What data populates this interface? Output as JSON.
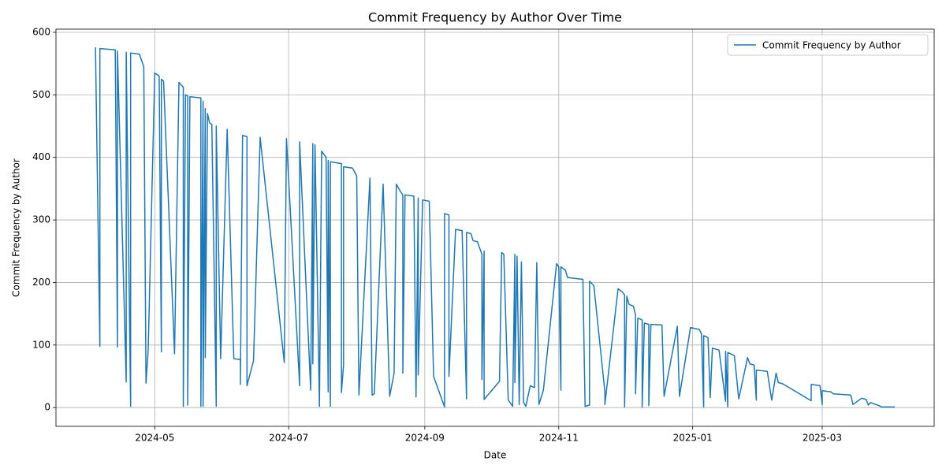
{
  "chart_data": {
    "type": "line",
    "title": "Commit Frequency by Author Over Time",
    "x_label": "Date",
    "y_label": "Commit Frequency by Author",
    "x": [
      "2024-04-04",
      "2024-04-06",
      "2024-04-06",
      "2024-04-13",
      "2024-04-14",
      "2024-04-14",
      "2024-04-18",
      "2024-04-18",
      "2024-04-20",
      "2024-04-20",
      "2024-04-24",
      "2024-04-26",
      "2024-04-27",
      "2024-04-28",
      "2024-05-01",
      "2024-05-03",
      "2024-05-04",
      "2024-05-04",
      "2024-05-05",
      "2024-05-10",
      "2024-05-12",
      "2024-05-14",
      "2024-05-14",
      "2024-05-15",
      "2024-05-16",
      "2024-05-16",
      "2024-05-17",
      "2024-05-22",
      "2024-05-22",
      "2024-05-23",
      "2024-05-23",
      "2024-05-24",
      "2024-05-24",
      "2024-05-25",
      "2024-05-26",
      "2024-05-27",
      "2024-05-29",
      "2024-05-29",
      "2024-05-31",
      "2024-06-03",
      "2024-06-06",
      "2024-06-09",
      "2024-06-09",
      "2024-06-10",
      "2024-06-12",
      "2024-06-12",
      "2024-06-15",
      "2024-06-18",
      "2024-06-29",
      "2024-06-30",
      "2024-07-06",
      "2024-07-06",
      "2024-07-11",
      "2024-07-12",
      "2024-07-12",
      "2024-07-13",
      "2024-07-15",
      "2024-07-16",
      "2024-07-18",
      "2024-07-19",
      "2024-07-19",
      "2024-07-20",
      "2024-07-20",
      "2024-07-25",
      "2024-07-25",
      "2024-07-26",
      "2024-07-26",
      "2024-07-30",
      "2024-07-31",
      "2024-08-01",
      "2024-08-02",
      "2024-08-07",
      "2024-08-08",
      "2024-08-09",
      "2024-08-13",
      "2024-08-16",
      "2024-08-18",
      "2024-08-19",
      "2024-08-21",
      "2024-08-22",
      "2024-08-22",
      "2024-08-23",
      "2024-08-27",
      "2024-08-28",
      "2024-08-29",
      "2024-08-29",
      "2024-08-31",
      "2024-09-03",
      "2024-09-05",
      "2024-09-10",
      "2024-09-10",
      "2024-09-12",
      "2024-09-12",
      "2024-09-15",
      "2024-09-18",
      "2024-09-20",
      "2024-09-20",
      "2024-09-22",
      "2024-09-23",
      "2024-09-25",
      "2024-09-27",
      "2024-09-27",
      "2024-09-28",
      "2024-09-28",
      "2024-10-05",
      "2024-10-06",
      "2024-10-07",
      "2024-10-09",
      "2024-10-11",
      "2024-10-12",
      "2024-10-12",
      "2024-10-13",
      "2024-10-14",
      "2024-10-15",
      "2024-10-16",
      "2024-10-17",
      "2024-10-19",
      "2024-10-21",
      "2024-10-22",
      "2024-10-23",
      "2024-10-25",
      "2024-10-31",
      "2024-11-01",
      "2024-11-02",
      "2024-11-02",
      "2024-11-04",
      "2024-11-05",
      "2024-11-12",
      "2024-11-13",
      "2024-11-15",
      "2024-11-15",
      "2024-11-17",
      "2024-11-22",
      "2024-11-22",
      "2024-11-28",
      "2024-11-30",
      "2024-12-01",
      "2024-12-01",
      "2024-12-02",
      "2024-12-03",
      "2024-12-05",
      "2024-12-06",
      "2024-12-06",
      "2024-12-07",
      "2024-12-09",
      "2024-12-09",
      "2024-12-10",
      "2024-12-12",
      "2024-12-12",
      "2024-12-13",
      "2024-12-18",
      "2024-12-19",
      "2024-12-25",
      "2024-12-26",
      "2024-12-31",
      "2025-01-04",
      "2025-01-05",
      "2025-01-06",
      "2025-01-06",
      "2025-01-08",
      "2025-01-09",
      "2025-01-10",
      "2025-01-13",
      "2025-01-16",
      "2025-01-16",
      "2025-01-17",
      "2025-01-17",
      "2025-01-20",
      "2025-01-22",
      "2025-01-26",
      "2025-01-27",
      "2025-01-29",
      "2025-01-30",
      "2025-01-30",
      "2025-02-04",
      "2025-02-06",
      "2025-02-08",
      "2025-02-09",
      "2025-02-11",
      "2025-02-24",
      "2025-02-24",
      "2025-02-28",
      "2025-03-01",
      "2025-03-01",
      "2025-03-05",
      "2025-03-06",
      "2025-03-14",
      "2025-03-15",
      "2025-03-19",
      "2025-03-21",
      "2025-03-22",
      "2025-03-23",
      "2025-03-27",
      "2025-03-28",
      "2025-04-03"
    ],
    "series": [
      {
        "name": "Commit Frequency by Author",
        "color": "#1f77b4",
        "values": [
          576,
          98,
          574,
          572,
          97,
          570,
          41,
          568,
          2,
          567,
          565,
          545,
          39,
          93,
          535,
          530,
          89,
          525,
          522,
          86,
          520,
          512,
          2,
          500,
          498,
          4,
          497,
          495,
          2,
          490,
          2,
          478,
          80,
          470,
          455,
          453,
          2,
          450,
          78,
          445,
          78,
          77,
          37,
          435,
          433,
          35,
          75,
          432,
          72,
          430,
          35,
          425,
          28,
          422,
          70,
          420,
          2,
          410,
          400,
          25,
          395,
          2,
          393,
          390,
          24,
          68,
          385,
          383,
          377,
          370,
          20,
          367,
          20,
          22,
          357,
          18,
          55,
          357,
          345,
          340,
          55,
          340,
          338,
          17,
          335,
          52,
          332,
          330,
          50,
          1,
          310,
          308,
          50,
          285,
          283,
          14,
          280,
          278,
          267,
          265,
          245,
          45,
          250,
          13,
          42,
          248,
          245,
          12,
          2,
          245,
          40,
          242,
          5,
          233,
          8,
          2,
          35,
          32,
          232,
          5,
          28,
          230,
          225,
          28,
          225,
          220,
          208,
          205,
          2,
          4,
          202,
          195,
          25,
          5,
          190,
          185,
          180,
          1,
          178,
          165,
          162,
          148,
          22,
          143,
          140,
          1,
          135,
          133,
          3,
          133,
          132,
          18,
          130,
          18,
          128,
          125,
          118,
          1,
          115,
          112,
          16,
          95,
          92,
          10,
          90,
          1,
          88,
          83,
          14,
          80,
          70,
          68,
          12,
          60,
          58,
          12,
          55,
          40,
          38,
          11,
          37,
          35,
          5,
          27,
          25,
          22,
          20,
          5,
          15,
          13,
          4,
          8,
          3,
          1,
          1
        ]
      }
    ],
    "xlim": [
      "2024-03-17",
      "2025-04-21"
    ],
    "xticks": [
      {
        "value": "2024-05-01",
        "label": "2024-05"
      },
      {
        "value": "2024-07-01",
        "label": "2024-07"
      },
      {
        "value": "2024-09-01",
        "label": "2024-09"
      },
      {
        "value": "2024-11-01",
        "label": "2024-11"
      },
      {
        "value": "2025-01-01",
        "label": "2025-01"
      },
      {
        "value": "2025-03-01",
        "label": "2025-03"
      }
    ],
    "ylim": [
      -30,
      605
    ],
    "yticks": [
      0,
      100,
      200,
      300,
      400,
      500,
      600
    ],
    "grid": true,
    "legend": "upper right"
  }
}
